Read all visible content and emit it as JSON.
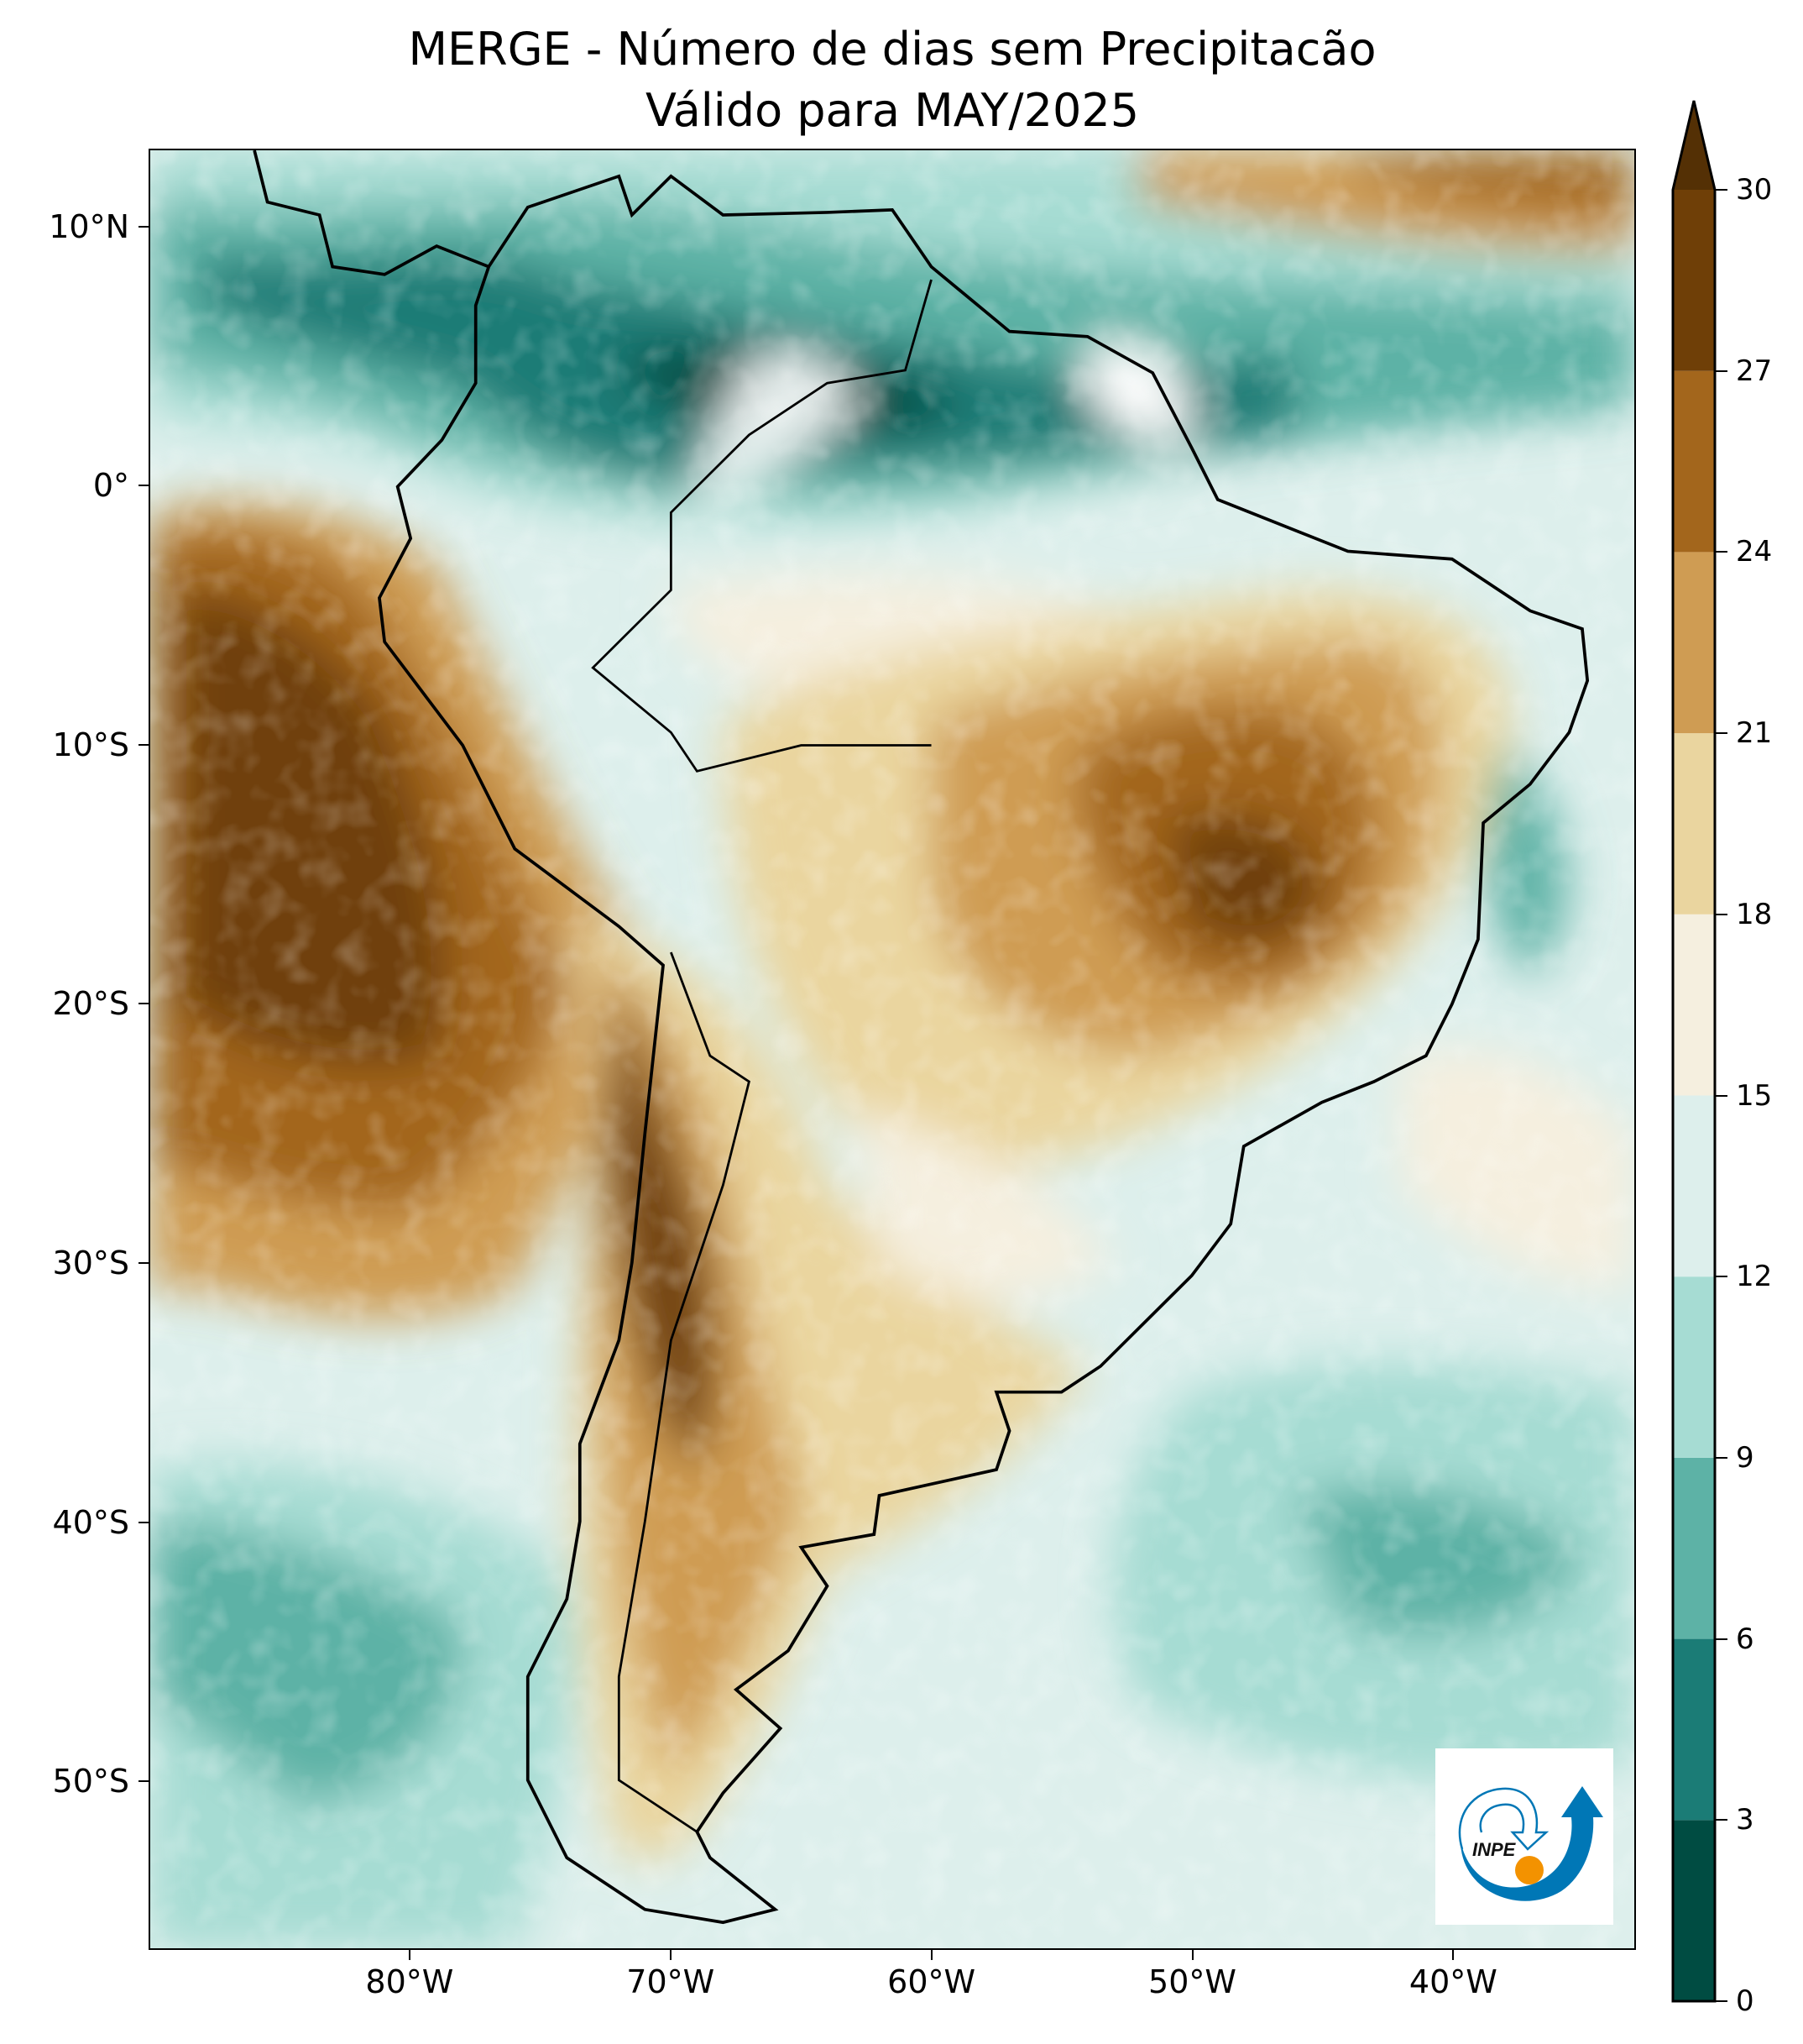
{
  "title": {
    "line1": "MERGE - Número de dias sem Precipitacão",
    "line2": "Válido para MAY/2025"
  },
  "map": {
    "extent_lon": [
      -90,
      -33
    ],
    "extent_lat": [
      -56.5,
      13
    ],
    "lat_ticks": [
      {
        "value": 10,
        "label": "10°N"
      },
      {
        "value": 0,
        "label": "0°"
      },
      {
        "value": -10,
        "label": "10°S"
      },
      {
        "value": -20,
        "label": "20°S"
      },
      {
        "value": -30,
        "label": "30°S"
      },
      {
        "value": -40,
        "label": "40°S"
      },
      {
        "value": -50,
        "label": "50°S"
      }
    ],
    "lon_ticks": [
      {
        "value": -80,
        "label": "80°W"
      },
      {
        "value": -70,
        "label": "70°W"
      },
      {
        "value": -60,
        "label": "60°W"
      },
      {
        "value": -50,
        "label": "50°W"
      },
      {
        "value": -40,
        "label": "40°W"
      }
    ]
  },
  "colorbar": {
    "levels": [
      0,
      3,
      6,
      9,
      12,
      15,
      18,
      21,
      24,
      27,
      30
    ],
    "colors": [
      "#004c42",
      "#1b7c76",
      "#5db2a6",
      "#a6dcd3",
      "#ddefec",
      "#f5efdf",
      "#ead59f",
      "#cf9c53",
      "#a3661c",
      "#6f3f07"
    ],
    "extend_max_color": "#543005",
    "labels": [
      "0",
      "3",
      "6",
      "9",
      "12",
      "15",
      "18",
      "21",
      "24",
      "27",
      "30"
    ]
  },
  "logo": {
    "text": "INPE",
    "blue": "#0077b6",
    "orange": "#f39200"
  }
}
